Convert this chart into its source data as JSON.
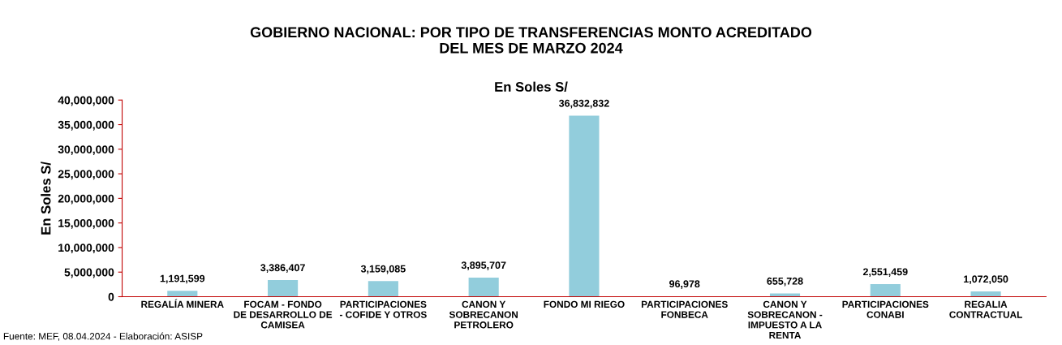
{
  "chart_data": {
    "type": "bar",
    "title": "GOBIERNO NACIONAL: POR TIPO DE TRANSFERENCIAS MONTO ACREDITADO\nDEL MES DE MARZO 2024",
    "subtitle": "En Soles S/",
    "ylabel": "En Soles S/",
    "categories": [
      "REGALÍA MINERA",
      "FOCAM - FONDO\nDE DESARROLLO DE\nCAMISEA",
      "PARTICIPACIONES\n- COFIDE Y OTROS",
      "CANON Y\nSOBRECANON\nPETROLERO",
      "FONDO MI RIEGO",
      "PARTICIPACIONES\nFONBECA",
      "CANON Y\nSOBRECANON -\nIMPUESTO A LA\nRENTA",
      "PARTICIPACIONES\nCONABI",
      "REGALIA\nCONTRACTUAL"
    ],
    "values": [
      1191599,
      3386407,
      3159085,
      3895707,
      36832832,
      96978,
      655728,
      2551459,
      1072050
    ],
    "value_labels": [
      "1,191,599",
      "3,386,407",
      "3,159,085",
      "3,895,707",
      "36,832,832",
      "96,978",
      "655,728",
      "2,551,459",
      "1,072,050"
    ],
    "color": "#92cddc",
    "ylim": [
      0,
      40000000
    ],
    "yticks": [
      {
        "value": 0,
        "label": "0"
      },
      {
        "value": 5000000,
        "label": "5,000,000"
      },
      {
        "value": 10000000,
        "label": "10,000,000"
      },
      {
        "value": 15000000,
        "label": "15,000,000"
      },
      {
        "value": 20000000,
        "label": "20,000,000"
      },
      {
        "value": 25000000,
        "label": "25,000,000"
      },
      {
        "value": 30000000,
        "label": "30,000,000"
      },
      {
        "value": 35000000,
        "label": "35,000,000"
      },
      {
        "value": 40000000,
        "label": "40,000,000"
      }
    ],
    "grid": false,
    "legend": false,
    "annotations": [
      "Fuente: MEF, 08.04.2024 - Elaboración: ASISP"
    ]
  }
}
